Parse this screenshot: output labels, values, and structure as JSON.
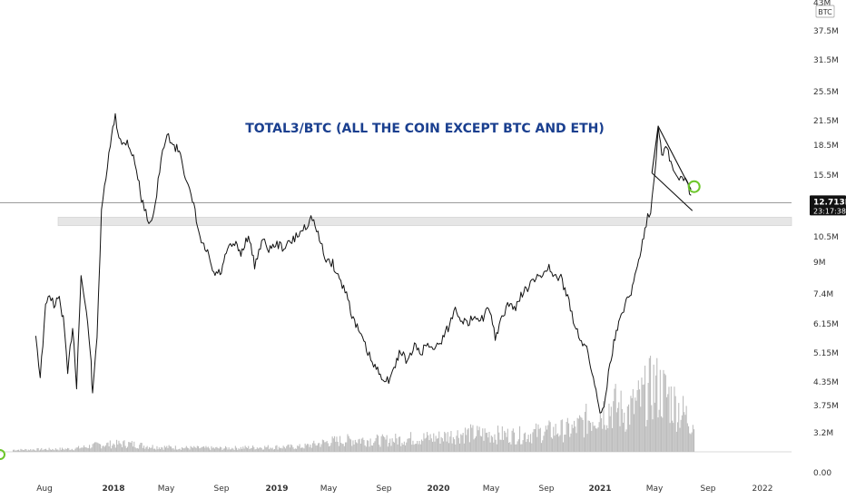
{
  "chart_data": {
    "type": "line",
    "title": "TOTAL3/BTC (ALL THE COIN EXCEPT BTC AND ETH)",
    "currency_label": "BTC",
    "yscale": "log",
    "y_tick_labels": [
      "43M",
      "37.5M",
      "31.5M",
      "25.5M",
      "21.5M",
      "18.5M",
      "15.5M",
      "12.5M",
      "10.5M",
      "9M",
      "7.4M",
      "6.15M",
      "5.15M",
      "4.35M",
      "3.75M",
      "3.2M",
      "0.00"
    ],
    "x_tick_labels": [
      {
        "label": "Aug",
        "bold": false
      },
      {
        "label": "2018",
        "bold": true
      },
      {
        "label": "May",
        "bold": false
      },
      {
        "label": "Sep",
        "bold": false
      },
      {
        "label": "2019",
        "bold": true
      },
      {
        "label": "May",
        "bold": false
      },
      {
        "label": "Sep",
        "bold": false
      },
      {
        "label": "2020",
        "bold": true
      },
      {
        "label": "May",
        "bold": false
      },
      {
        "label": "Sep",
        "bold": false
      },
      {
        "label": "2021",
        "bold": true
      },
      {
        "label": "May",
        "bold": false
      },
      {
        "label": "Sep",
        "bold": false
      },
      {
        "label": "2022",
        "bold": false
      }
    ],
    "price_label": "12.713M",
    "countdown_label": "23:17:38",
    "series": [
      {
        "values": [
          [
            "2017-07-10",
            6.5
          ],
          [
            "2017-07-20",
            5.2
          ],
          [
            "2017-08-01",
            7.4
          ],
          [
            "2017-08-10",
            8.0
          ],
          [
            "2017-08-20",
            7.5
          ],
          [
            "2017-09-01",
            7.8
          ],
          [
            "2017-09-10",
            7.0
          ],
          [
            "2017-09-20",
            5.3
          ],
          [
            "2017-10-01",
            6.8
          ],
          [
            "2017-10-10",
            5.0
          ],
          [
            "2017-10-20",
            8.8
          ],
          [
            "2017-11-01",
            7.2
          ],
          [
            "2017-11-10",
            6.0
          ],
          [
            "2017-11-15",
            4.7
          ],
          [
            "2017-11-25",
            6.5
          ],
          [
            "2017-12-05",
            12.0
          ],
          [
            "2017-12-15",
            14.5
          ],
          [
            "2017-12-25",
            17.0
          ],
          [
            "2018-01-05",
            20.0
          ],
          [
            "2018-01-10",
            18.5
          ],
          [
            "2018-01-20",
            17.0
          ],
          [
            "2018-02-01",
            17.5
          ],
          [
            "2018-02-15",
            16.0
          ],
          [
            "2018-02-25",
            14.5
          ],
          [
            "2018-03-05",
            13.0
          ],
          [
            "2018-03-15",
            12.0
          ],
          [
            "2018-03-25",
            11.5
          ],
          [
            "2018-04-05",
            12.5
          ],
          [
            "2018-04-15",
            15.0
          ],
          [
            "2018-04-25",
            17.0
          ],
          [
            "2018-05-05",
            18.0
          ],
          [
            "2018-05-15",
            17.0
          ],
          [
            "2018-06-01",
            16.5
          ],
          [
            "2018-06-15",
            14.0
          ],
          [
            "2018-07-01",
            12.5
          ],
          [
            "2018-07-15",
            10.5
          ],
          [
            "2018-08-01",
            9.8
          ],
          [
            "2018-08-15",
            8.8
          ],
          [
            "2018-09-01",
            8.9
          ],
          [
            "2018-09-15",
            10.0
          ],
          [
            "2018-10-01",
            10.3
          ],
          [
            "2018-10-15",
            9.8
          ],
          [
            "2018-11-01",
            10.8
          ],
          [
            "2018-11-15",
            9.2
          ],
          [
            "2018-12-01",
            10.5
          ],
          [
            "2018-12-20",
            10.0
          ],
          [
            "2019-01-01",
            10.3
          ],
          [
            "2019-01-20",
            10.1
          ],
          [
            "2019-02-10",
            10.5
          ],
          [
            "2019-03-01",
            11.0
          ],
          [
            "2019-03-25",
            11.8
          ],
          [
            "2019-04-10",
            10.5
          ],
          [
            "2019-04-25",
            9.5
          ],
          [
            "2019-05-10",
            9.3
          ],
          [
            "2019-05-25",
            8.6
          ],
          [
            "2019-06-10",
            8.0
          ],
          [
            "2019-06-25",
            7.0
          ],
          [
            "2019-07-10",
            6.5
          ],
          [
            "2019-07-25",
            6.0
          ],
          [
            "2019-08-10",
            5.5
          ],
          [
            "2019-08-25",
            5.3
          ],
          [
            "2019-09-10",
            5.1
          ],
          [
            "2019-09-25",
            5.4
          ],
          [
            "2019-10-10",
            6.0
          ],
          [
            "2019-10-25",
            5.6
          ],
          [
            "2019-11-10",
            6.1
          ],
          [
            "2019-11-25",
            5.9
          ],
          [
            "2019-12-10",
            6.2
          ],
          [
            "2019-12-25",
            6.0
          ],
          [
            "2020-01-10",
            6.3
          ],
          [
            "2020-01-25",
            6.7
          ],
          [
            "2020-02-10",
            7.4
          ],
          [
            "2020-02-25",
            7.0
          ],
          [
            "2020-03-10",
            6.8
          ],
          [
            "2020-03-25",
            7.2
          ],
          [
            "2020-04-10",
            7.0
          ],
          [
            "2020-04-25",
            7.4
          ],
          [
            "2020-05-10",
            6.4
          ],
          [
            "2020-05-25",
            7.0
          ],
          [
            "2020-06-10",
            7.6
          ],
          [
            "2020-06-25",
            7.4
          ],
          [
            "2020-07-10",
            8.0
          ],
          [
            "2020-07-25",
            8.3
          ],
          [
            "2020-08-10",
            8.6
          ],
          [
            "2020-08-25",
            8.8
          ],
          [
            "2020-09-05",
            9.2
          ],
          [
            "2020-09-20",
            8.6
          ],
          [
            "2020-10-05",
            8.7
          ],
          [
            "2020-10-20",
            7.8
          ],
          [
            "2020-11-05",
            6.8
          ],
          [
            "2020-11-20",
            6.3
          ],
          [
            "2020-12-05",
            5.9
          ],
          [
            "2020-12-20",
            5.0
          ],
          [
            "2021-01-01",
            4.4
          ],
          [
            "2021-01-10",
            4.5
          ],
          [
            "2021-01-20",
            5.3
          ],
          [
            "2021-02-01",
            6.2
          ],
          [
            "2021-02-15",
            7.0
          ],
          [
            "2021-03-01",
            7.7
          ],
          [
            "2021-03-15",
            8.2
          ],
          [
            "2021-04-01",
            9.8
          ],
          [
            "2021-04-15",
            11.5
          ],
          [
            "2021-04-25",
            12.3
          ],
          [
            "2021-05-05",
            15.0
          ],
          [
            "2021-05-12",
            18.8
          ],
          [
            "2021-05-20",
            16.5
          ],
          [
            "2021-06-01",
            16.8
          ],
          [
            "2021-06-15",
            15.0
          ],
          [
            "2021-06-25",
            14.3
          ],
          [
            "2021-07-05",
            14.6
          ],
          [
            "2021-07-15",
            14.0
          ],
          [
            "2021-07-25",
            13.2
          ]
        ]
      }
    ],
    "volume": {
      "values": [
        [
          "2017-06-01",
          0.02
        ],
        [
          "2017-08-01",
          0.025
        ],
        [
          "2017-10-01",
          0.03
        ],
        [
          "2017-12-01",
          0.07
        ],
        [
          "2018-02-01",
          0.08
        ],
        [
          "2018-04-01",
          0.05
        ],
        [
          "2018-06-01",
          0.04
        ],
        [
          "2018-09-01",
          0.035
        ],
        [
          "2018-12-01",
          0.045
        ],
        [
          "2019-03-01",
          0.05
        ],
        [
          "2019-05-01",
          0.1
        ],
        [
          "2019-07-01",
          0.12
        ],
        [
          "2019-09-01",
          0.11
        ],
        [
          "2019-11-01",
          0.13
        ],
        [
          "2020-01-01",
          0.14
        ],
        [
          "2020-03-01",
          0.18
        ],
        [
          "2020-05-01",
          0.17
        ],
        [
          "2020-07-01",
          0.16
        ],
        [
          "2020-09-01",
          0.2
        ],
        [
          "2020-11-01",
          0.22
        ],
        [
          "2021-01-01",
          0.4
        ],
        [
          "2021-02-01",
          0.45
        ],
        [
          "2021-03-01",
          0.38
        ],
        [
          "2021-04-01",
          0.5
        ],
        [
          "2021-05-01",
          0.65
        ],
        [
          "2021-06-01",
          0.55
        ],
        [
          "2021-07-01",
          0.4
        ],
        [
          "2021-07-25",
          0.3
        ]
      ]
    },
    "annotations": {
      "support_zone_range": [
        11.3,
        11.8
      ],
      "current_price_line": 12.713,
      "triangle_upper": [
        [
          "2021-05-12",
          18.8
        ],
        [
          "2021-07-25",
          13.6
        ]
      ],
      "triangle_lower": [
        [
          "2021-04-28",
          14.8
        ],
        [
          "2021-07-28",
          12.2
        ]
      ],
      "triangle_left": [
        [
          "2021-05-12",
          18.8
        ],
        [
          "2021-04-28",
          14.8
        ]
      ],
      "breakout_circle_at": [
        "2021-07-28",
        13.8
      ]
    },
    "colors": {
      "line": "#111111",
      "title": "#1a3f8f",
      "volume": "#bdbdbd",
      "zone": "#e6e6e6",
      "circle": "#6cc62a",
      "price_box": "#111111",
      "axis_text": "#333333"
    }
  }
}
